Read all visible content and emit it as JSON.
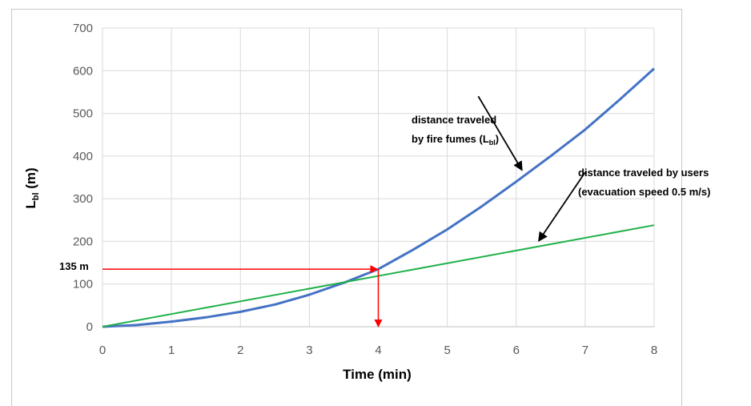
{
  "chart_data": {
    "type": "line",
    "xlabel": "Time (min)",
    "ylabel_main": "L",
    "ylabel_sub": "bl",
    "ylabel_unit": " (m)",
    "xlim": [
      0,
      8
    ],
    "ylim": [
      0,
      700
    ],
    "x_ticks": [
      0,
      1,
      2,
      3,
      4,
      5,
      6,
      7,
      8
    ],
    "y_ticks": [
      0,
      100,
      200,
      300,
      400,
      500,
      600,
      700
    ],
    "grid": true,
    "series": [
      {
        "color": "#4472C4",
        "x": [
          0,
          0.5,
          1,
          1.5,
          2,
          2.5,
          3,
          3.5,
          4,
          4.5,
          5,
          5.5,
          6,
          6.5,
          7,
          7.5,
          8
        ],
        "y": [
          0,
          4,
          12,
          22,
          35,
          52,
          75,
          103,
          135,
          180,
          228,
          282,
          340,
          400,
          462,
          532,
          605
        ]
      },
      {
        "color": "#22B14C",
        "x": [
          0,
          8
        ],
        "y": [
          0,
          238
        ]
      }
    ],
    "annotations": {
      "fumes_line1": "distance traveled",
      "fumes_line2_prefix": "by fire fumes (L",
      "fumes_line2_sub": "bl",
      "fumes_line2_suffix": ")",
      "users_line1": "distance traveled by users",
      "users_line2": "(evacuation speed 0.5 m/s)",
      "marker_label": "135 m",
      "marker_y": 135,
      "marker_x": 4
    }
  }
}
